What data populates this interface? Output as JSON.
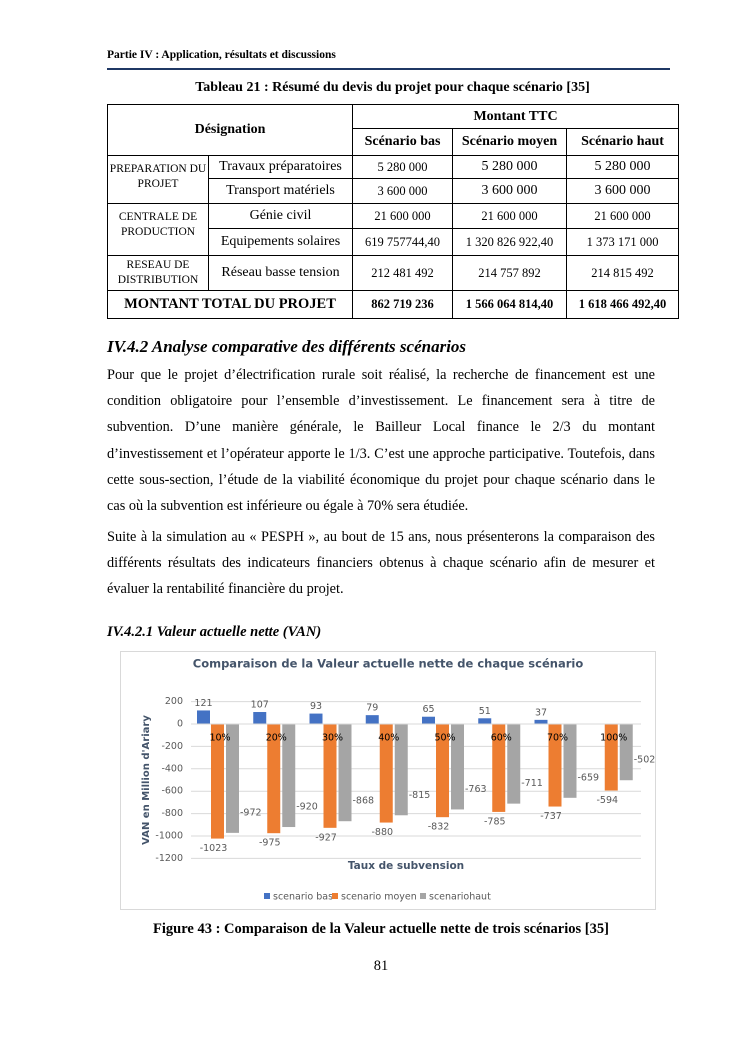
{
  "header": "Partie IV : Application, résultats et discussions",
  "table": {
    "caption": "Tableau 21 : Résumé du devis du projet pour chaque scénario [35]",
    "designation": "Désignation",
    "amount": "Montant TTC",
    "scenarios": [
      "Scénario bas",
      "Scénario moyen",
      "Scénario haut"
    ],
    "groups": [
      {
        "name": "PREPARATION DU PROJET",
        "rows": [
          {
            "item": "Travaux préparatoires",
            "values": [
              "5 280 000",
              "5 280 000",
              "5 280 000"
            ]
          },
          {
            "item": "Transport matériels",
            "values": [
              "3 600 000",
              "3 600 000",
              "3 600 000"
            ]
          }
        ]
      },
      {
        "name": "CENTRALE DE PRODUCTION",
        "rows": [
          {
            "item": "Génie civil",
            "values": [
              "21 600 000",
              "21 600 000",
              "21 600 000"
            ]
          },
          {
            "item": "Equipements solaires",
            "values": [
              "619 757744,40",
              "1 320 826 922,40",
              "1 373 171 000"
            ]
          }
        ]
      },
      {
        "name": "RESEAU DE DISTRIBUTION",
        "rows": [
          {
            "item": "Réseau basse tension",
            "values": [
              "212 481 492",
              "214 757 892",
              "214 815 492"
            ]
          }
        ]
      }
    ],
    "total": {
      "label": "MONTANT TOTAL DU PROJET",
      "values": [
        "862 719 236",
        "1 566 064 814,40",
        "1 618 466 492,40"
      ]
    }
  },
  "section_title": "IV.4.2  Analyse comparative des différents scénarios",
  "paragraphs": [
    "Pour que le projet d’électrification rurale soit réalisé, la recherche de financement est une condition obligatoire pour l’ensemble d’investissement. Le financement sera à titre de subvention. D’une manière générale, le Bailleur Local finance le 2/3 du montant d’investissement et l’opérateur apporte le 1/3. C’est une approche participative. Toutefois, dans cette sous-section, l’étude de la viabilité économique du projet pour chaque scénario dans le cas où la subvention est inférieure ou égale à 70% sera étudiée.",
    "Suite à la simulation au « PESPH », au bout de 15 ans, nous présenterons la comparaison des différents résultats des indicateurs financiers obtenus à chaque scénario afin de mesurer et évaluer la rentabilité financière du projet."
  ],
  "subsection_title": "IV.4.2.1 Valeur actuelle nette (VAN)",
  "chart_data": {
    "type": "bar",
    "title": "Comparaison de la Valeur actuelle nette de chaque scénario",
    "x_label": "Taux de subvension",
    "y_label": "VAN en Million d'Ariary",
    "categories": [
      "10%",
      "20%",
      "30%",
      "40%",
      "50%",
      "60%",
      "70%",
      "100%"
    ],
    "series": [
      {
        "name": "scenario bas",
        "color": "#4472c4",
        "values": [
          121,
          107,
          93,
          79,
          65,
          51,
          37,
          null
        ]
      },
      {
        "name": "scenario moyen",
        "color": "#ed7d31",
        "values": [
          -1023,
          -975,
          -927,
          -880,
          -832,
          -785,
          -737,
          -594
        ]
      },
      {
        "name": "scenariohaut",
        "color": "#a5a5a5",
        "values": [
          -972,
          -920,
          -868,
          -815,
          -763,
          -711,
          -659,
          -502
        ]
      }
    ],
    "ylim": [
      -1200,
      200
    ],
    "yticks": [
      -1200,
      -1000,
      -800,
      -600,
      -400,
      -200,
      0,
      200
    ],
    "grid": true,
    "legend": "bottom"
  },
  "figure_caption": "Figure 43 : Comparaison de la Valeur actuelle nette de trois scénarios [35]",
  "page_number": "81"
}
